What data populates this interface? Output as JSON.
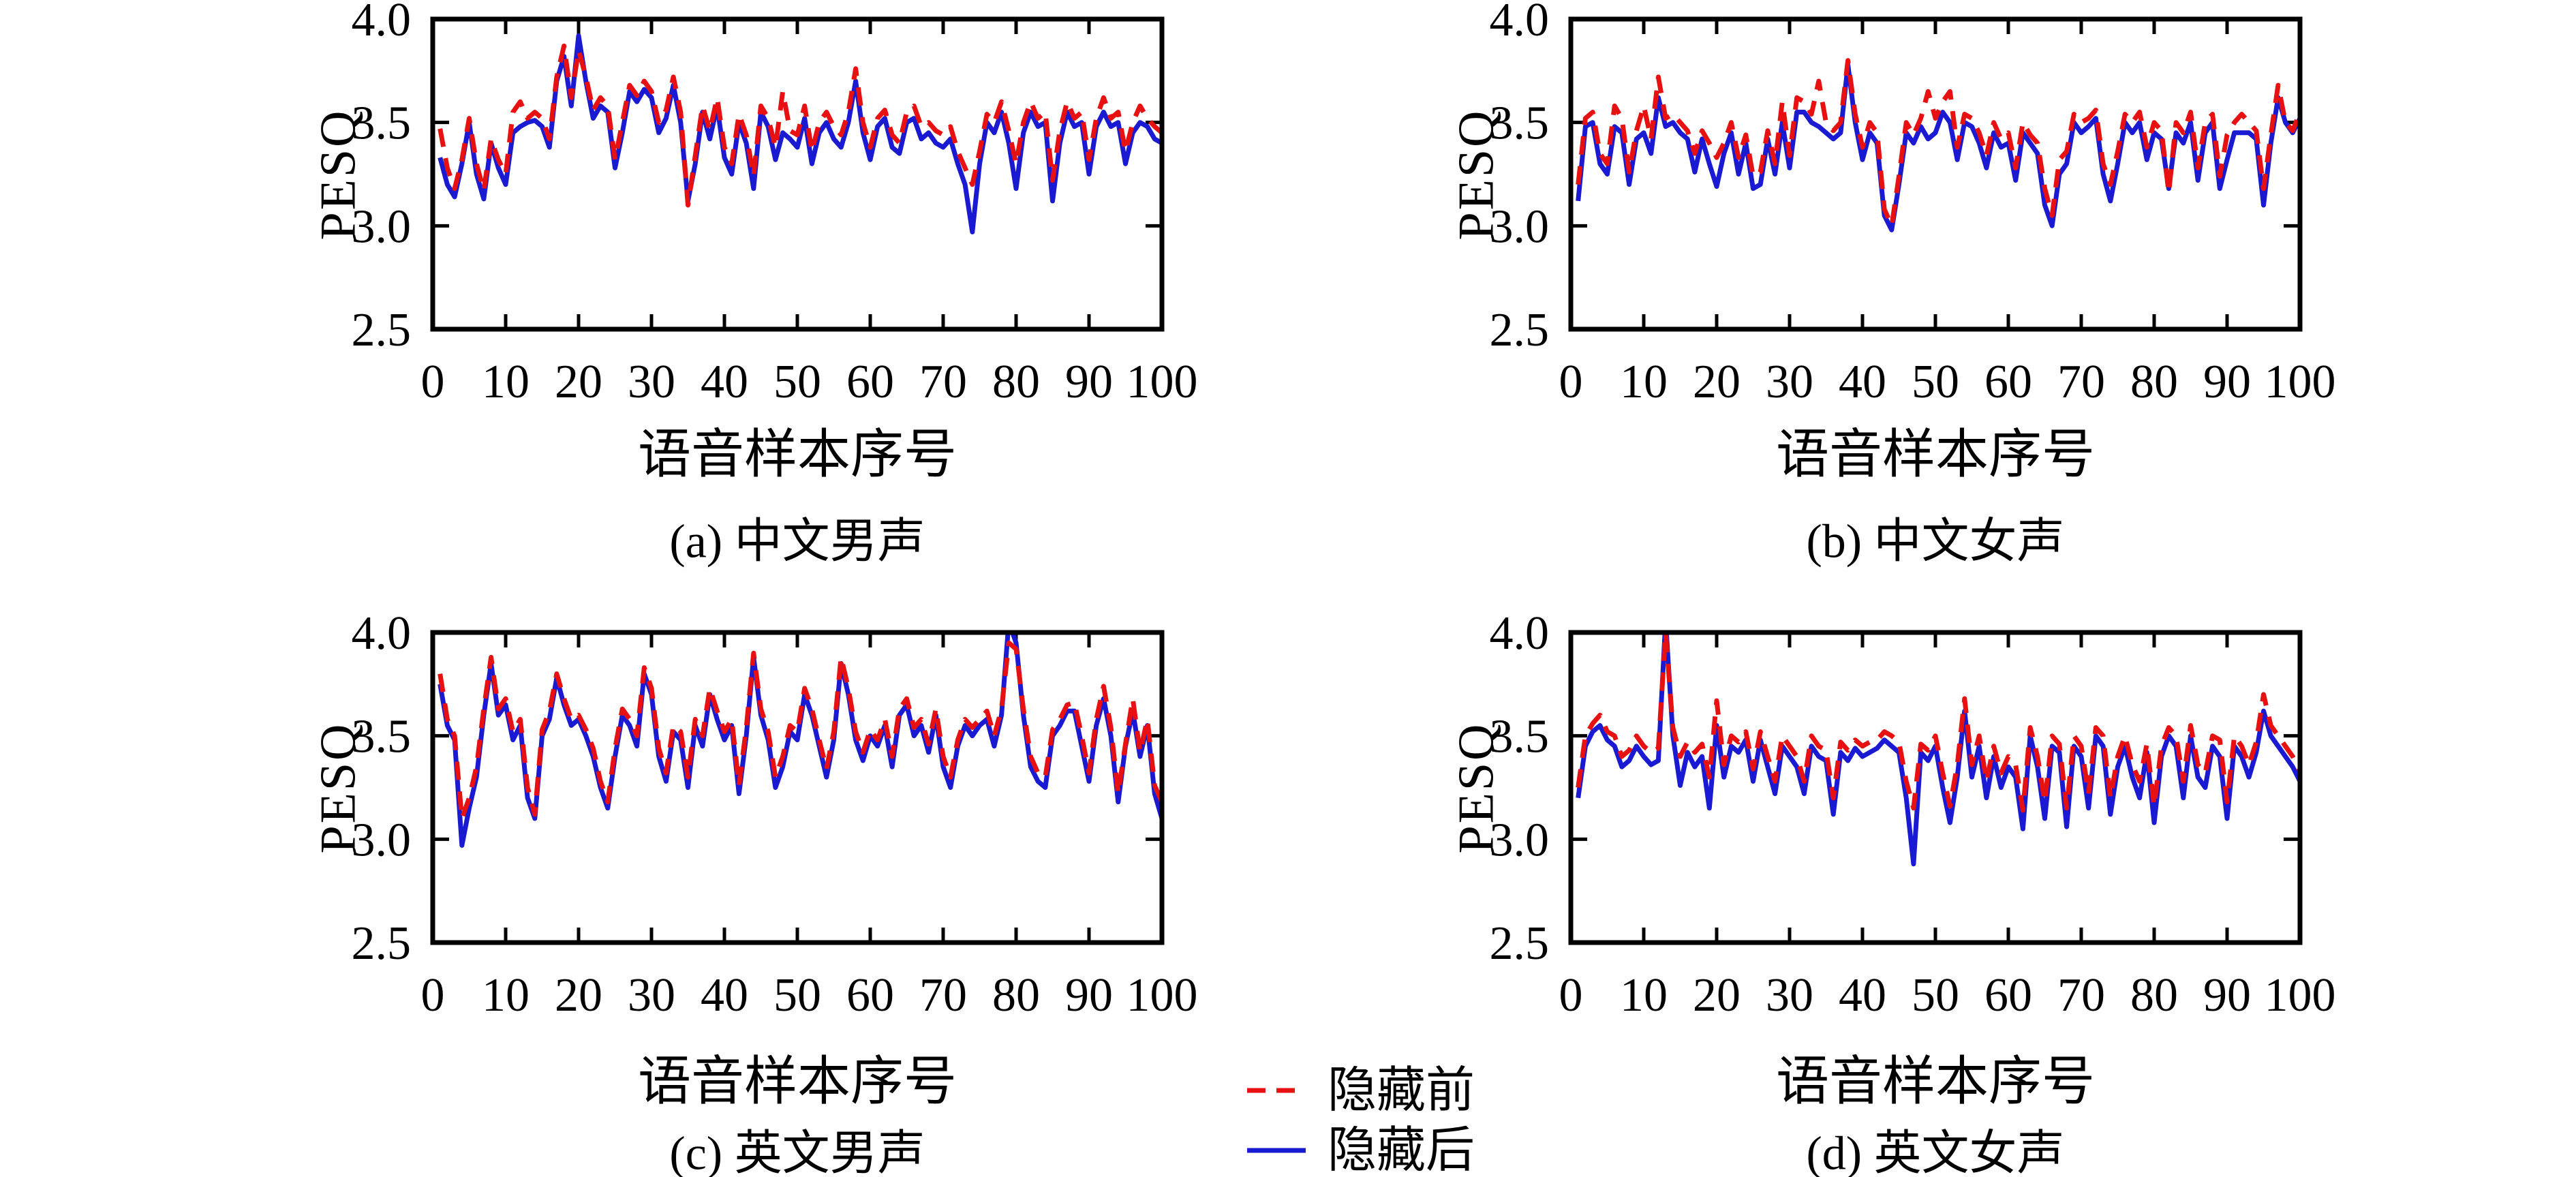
{
  "figure": {
    "background": "#ffffff",
    "axis_color": "#000000",
    "before_color": "#e81111",
    "after_color": "#1a1ad2"
  },
  "legend": {
    "position": "bottom-center",
    "items": [
      {
        "label": "隐藏前",
        "color": "#e81111",
        "style": "dashed"
      },
      {
        "label": "隐藏后",
        "color": "#1a1ad2",
        "style": "solid"
      }
    ]
  },
  "chart_data": [
    {
      "type": "line",
      "panel": "a",
      "title": "(a) 中文男声",
      "xlabel": "语音样本序号",
      "ylabel": "PESQ",
      "xlim": [
        0,
        100
      ],
      "ylim": [
        2.5,
        4.0
      ],
      "grid": false,
      "xticks": [
        0,
        10,
        20,
        30,
        40,
        50,
        60,
        70,
        80,
        90,
        100
      ],
      "yticks": [
        2.5,
        3.0,
        3.5,
        4.0
      ],
      "ytick_labels": [
        "2.5",
        "3.0",
        "3.5",
        "4.0"
      ],
      "x_start": 1,
      "x_step": 1,
      "series": [
        {
          "name": "隐藏前",
          "color": "#e81111",
          "dash": true,
          "values": [
            3.47,
            3.28,
            3.18,
            3.32,
            3.52,
            3.3,
            3.17,
            3.42,
            3.32,
            3.25,
            3.55,
            3.6,
            3.52,
            3.55,
            3.52,
            3.42,
            3.72,
            3.87,
            3.62,
            3.85,
            3.72,
            3.56,
            3.62,
            3.58,
            3.32,
            3.5,
            3.68,
            3.63,
            3.7,
            3.65,
            3.5,
            3.56,
            3.72,
            3.55,
            3.1,
            3.34,
            3.58,
            3.46,
            3.62,
            3.38,
            3.3,
            3.54,
            3.44,
            3.24,
            3.58,
            3.52,
            3.38,
            3.65,
            3.46,
            3.44,
            3.58,
            3.36,
            3.5,
            3.55,
            3.48,
            3.44,
            3.55,
            3.76,
            3.5,
            3.38,
            3.52,
            3.56,
            3.44,
            3.4,
            3.55,
            3.58,
            3.48,
            3.5,
            3.46,
            3.44,
            3.48,
            3.36,
            3.28,
            3.2,
            3.36,
            3.54,
            3.5,
            3.6,
            3.46,
            3.3,
            3.5,
            3.6,
            3.52,
            3.55,
            3.22,
            3.46,
            3.6,
            3.52,
            3.55,
            3.32,
            3.52,
            3.62,
            3.52,
            3.55,
            3.36,
            3.5,
            3.58,
            3.52,
            3.48,
            3.45
          ]
        },
        {
          "name": "隐藏后",
          "color": "#1a1ad2",
          "dash": false,
          "values": [
            3.33,
            3.2,
            3.14,
            3.3,
            3.5,
            3.25,
            3.13,
            3.4,
            3.28,
            3.2,
            3.45,
            3.48,
            3.5,
            3.51,
            3.48,
            3.38,
            3.7,
            3.82,
            3.58,
            3.92,
            3.7,
            3.52,
            3.58,
            3.55,
            3.28,
            3.45,
            3.65,
            3.6,
            3.66,
            3.62,
            3.45,
            3.52,
            3.68,
            3.5,
            3.12,
            3.3,
            3.55,
            3.42,
            3.58,
            3.33,
            3.25,
            3.5,
            3.4,
            3.18,
            3.55,
            3.48,
            3.32,
            3.45,
            3.42,
            3.38,
            3.52,
            3.3,
            3.45,
            3.5,
            3.42,
            3.38,
            3.5,
            3.7,
            3.45,
            3.32,
            3.48,
            3.52,
            3.38,
            3.35,
            3.5,
            3.52,
            3.42,
            3.45,
            3.4,
            3.38,
            3.42,
            3.3,
            3.2,
            2.97,
            3.3,
            3.5,
            3.45,
            3.55,
            3.4,
            3.18,
            3.45,
            3.55,
            3.48,
            3.5,
            3.12,
            3.4,
            3.55,
            3.48,
            3.5,
            3.25,
            3.48,
            3.55,
            3.48,
            3.5,
            3.3,
            3.45,
            3.5,
            3.48,
            3.42,
            3.4
          ]
        }
      ]
    },
    {
      "type": "line",
      "panel": "b",
      "title": "(b) 中文女声",
      "xlabel": "语音样本序号",
      "ylabel": "PESQ",
      "xlim": [
        0,
        100
      ],
      "ylim": [
        2.5,
        4.0
      ],
      "grid": false,
      "xticks": [
        0,
        10,
        20,
        30,
        40,
        50,
        60,
        70,
        80,
        90,
        100
      ],
      "yticks": [
        2.5,
        3.0,
        3.5,
        4.0
      ],
      "ytick_labels": [
        "2.5",
        "3.0",
        "3.5",
        "4.0"
      ],
      "x_start": 1,
      "x_step": 1,
      "series": [
        {
          "name": "隐藏前",
          "color": "#e81111",
          "dash": true,
          "values": [
            3.2,
            3.52,
            3.55,
            3.35,
            3.3,
            3.58,
            3.52,
            3.26,
            3.46,
            3.58,
            3.42,
            3.72,
            3.52,
            3.54,
            3.5,
            3.46,
            3.35,
            3.46,
            3.4,
            3.33,
            3.4,
            3.5,
            3.33,
            3.44,
            3.24,
            3.26,
            3.46,
            3.3,
            3.6,
            3.34,
            3.62,
            3.6,
            3.54,
            3.7,
            3.5,
            3.46,
            3.5,
            3.8,
            3.54,
            3.38,
            3.5,
            3.45,
            3.08,
            3.0,
            3.24,
            3.5,
            3.44,
            3.52,
            3.65,
            3.52,
            3.6,
            3.65,
            3.38,
            3.54,
            3.52,
            3.45,
            3.34,
            3.5,
            3.42,
            3.45,
            3.28,
            3.5,
            3.44,
            3.4,
            3.18,
            3.05,
            3.32,
            3.36,
            3.54,
            3.5,
            3.52,
            3.56,
            3.3,
            3.2,
            3.36,
            3.54,
            3.5,
            3.55,
            3.38,
            3.5,
            3.46,
            3.16,
            3.5,
            3.45,
            3.55,
            3.28,
            3.5,
            3.54,
            3.24,
            3.44,
            3.5,
            3.54,
            3.5,
            3.46,
            3.18,
            3.44,
            3.68,
            3.5,
            3.46,
            3.55
          ]
        },
        {
          "name": "隐藏后",
          "color": "#1a1ad2",
          "dash": false,
          "values": [
            3.12,
            3.48,
            3.5,
            3.3,
            3.25,
            3.48,
            3.45,
            3.2,
            3.42,
            3.45,
            3.35,
            3.62,
            3.48,
            3.5,
            3.45,
            3.42,
            3.26,
            3.42,
            3.3,
            3.19,
            3.35,
            3.45,
            3.25,
            3.4,
            3.18,
            3.2,
            3.42,
            3.25,
            3.5,
            3.28,
            3.55,
            3.55,
            3.5,
            3.48,
            3.45,
            3.42,
            3.45,
            3.78,
            3.5,
            3.32,
            3.45,
            3.4,
            3.05,
            2.98,
            3.2,
            3.45,
            3.4,
            3.48,
            3.42,
            3.45,
            3.55,
            3.5,
            3.32,
            3.5,
            3.48,
            3.4,
            3.28,
            3.45,
            3.38,
            3.4,
            3.22,
            3.45,
            3.4,
            3.35,
            3.1,
            3.0,
            3.25,
            3.3,
            3.5,
            3.45,
            3.48,
            3.52,
            3.25,
            3.12,
            3.3,
            3.5,
            3.45,
            3.5,
            3.32,
            3.45,
            3.42,
            3.18,
            3.45,
            3.4,
            3.5,
            3.22,
            3.45,
            3.5,
            3.18,
            3.32,
            3.45,
            3.45,
            3.45,
            3.42,
            3.1,
            3.4,
            3.62,
            3.5,
            3.45,
            3.52
          ]
        }
      ]
    },
    {
      "type": "line",
      "panel": "c",
      "title": "(c) 英文男声",
      "xlabel": "语音样本序号",
      "ylabel": "PESQ",
      "xlim": [
        0,
        100
      ],
      "ylim": [
        2.5,
        4.0
      ],
      "grid": false,
      "xticks": [
        0,
        10,
        20,
        30,
        40,
        50,
        60,
        70,
        80,
        90,
        100
      ],
      "yticks": [
        2.5,
        3.0,
        3.5,
        4.0
      ],
      "ytick_labels": [
        "2.5",
        "3.0",
        "3.5",
        "4.0"
      ],
      "x_start": 1,
      "x_step": 1,
      "series": [
        {
          "name": "隐藏前",
          "color": "#e81111",
          "dash": true,
          "values": [
            3.8,
            3.58,
            3.5,
            3.1,
            3.2,
            3.35,
            3.63,
            3.88,
            3.63,
            3.68,
            3.52,
            3.58,
            3.25,
            3.12,
            3.53,
            3.62,
            3.8,
            3.68,
            3.58,
            3.6,
            3.53,
            3.44,
            3.28,
            3.18,
            3.44,
            3.63,
            3.58,
            3.5,
            3.83,
            3.73,
            3.44,
            3.32,
            3.55,
            3.52,
            3.3,
            3.58,
            3.5,
            3.73,
            3.62,
            3.52,
            3.58,
            3.26,
            3.54,
            3.9,
            3.63,
            3.52,
            3.3,
            3.4,
            3.55,
            3.52,
            3.73,
            3.63,
            3.48,
            3.34,
            3.52,
            3.88,
            3.73,
            3.52,
            3.42,
            3.53,
            3.48,
            3.58,
            3.4,
            3.63,
            3.68,
            3.54,
            3.58,
            3.46,
            3.63,
            3.4,
            3.3,
            3.48,
            3.58,
            3.54,
            3.58,
            3.62,
            3.5,
            3.63,
            3.95,
            3.92,
            3.63,
            3.4,
            3.32,
            3.3,
            3.53,
            3.58,
            3.65,
            3.66,
            3.5,
            3.32,
            3.58,
            3.74,
            3.54,
            3.22,
            3.46,
            3.68,
            3.42,
            3.58,
            3.26,
            3.18
          ]
        },
        {
          "name": "隐藏后",
          "color": "#1a1ad2",
          "dash": false,
          "values": [
            3.75,
            3.55,
            3.48,
            2.97,
            3.15,
            3.3,
            3.6,
            3.85,
            3.6,
            3.65,
            3.48,
            3.55,
            3.2,
            3.1,
            3.5,
            3.58,
            3.78,
            3.65,
            3.55,
            3.58,
            3.5,
            3.4,
            3.25,
            3.15,
            3.4,
            3.6,
            3.55,
            3.45,
            3.8,
            3.7,
            3.4,
            3.28,
            3.52,
            3.48,
            3.25,
            3.55,
            3.45,
            3.7,
            3.58,
            3.48,
            3.55,
            3.22,
            3.5,
            3.88,
            3.6,
            3.48,
            3.25,
            3.35,
            3.52,
            3.48,
            3.7,
            3.6,
            3.45,
            3.3,
            3.48,
            3.85,
            3.7,
            3.48,
            3.38,
            3.5,
            3.45,
            3.55,
            3.35,
            3.6,
            3.65,
            3.5,
            3.55,
            3.42,
            3.6,
            3.35,
            3.25,
            3.45,
            3.55,
            3.5,
            3.55,
            3.58,
            3.45,
            3.6,
            4.05,
            3.95,
            3.6,
            3.35,
            3.28,
            3.25,
            3.5,
            3.55,
            3.62,
            3.62,
            3.45,
            3.28,
            3.55,
            3.68,
            3.5,
            3.18,
            3.45,
            3.62,
            3.4,
            3.55,
            3.22,
            3.1
          ]
        }
      ]
    },
    {
      "type": "line",
      "panel": "d",
      "title": "(d) 英文女声",
      "xlabel": "语音样本序号",
      "ylabel": "PESQ",
      "xlim": [
        0,
        100
      ],
      "ylim": [
        2.5,
        4.0
      ],
      "grid": false,
      "xticks": [
        0,
        10,
        20,
        30,
        40,
        50,
        60,
        70,
        80,
        90,
        100
      ],
      "yticks": [
        2.5,
        3.0,
        3.5,
        4.0
      ],
      "ytick_labels": [
        "2.5",
        "3.0",
        "3.5",
        "4.0"
      ],
      "x_start": 1,
      "x_step": 1,
      "series": [
        {
          "name": "隐藏前",
          "color": "#e81111",
          "dash": true,
          "values": [
            3.25,
            3.5,
            3.56,
            3.6,
            3.52,
            3.5,
            3.4,
            3.43,
            3.5,
            3.45,
            3.42,
            3.44,
            4.0,
            3.54,
            3.4,
            3.47,
            3.42,
            3.46,
            3.3,
            3.67,
            3.36,
            3.5,
            3.47,
            3.52,
            3.34,
            3.52,
            3.4,
            3.28,
            3.5,
            3.45,
            3.4,
            3.28,
            3.5,
            3.45,
            3.43,
            3.2,
            3.47,
            3.43,
            3.48,
            3.45,
            3.47,
            3.48,
            3.52,
            3.5,
            3.47,
            3.28,
            3.15,
            3.46,
            3.43,
            3.5,
            3.32,
            3.16,
            3.36,
            3.68,
            3.36,
            3.5,
            3.28,
            3.45,
            3.32,
            3.4,
            3.36,
            3.14,
            3.54,
            3.4,
            3.18,
            3.5,
            3.46,
            3.15,
            3.5,
            3.45,
            3.22,
            3.54,
            3.5,
            3.2,
            3.4,
            3.5,
            3.36,
            3.28,
            3.46,
            3.16,
            3.45,
            3.54,
            3.5,
            3.28,
            3.55,
            3.36,
            3.32,
            3.5,
            3.48,
            3.18,
            3.5,
            3.45,
            3.36,
            3.47,
            3.7,
            3.55,
            3.5,
            3.45,
            3.4,
            3.33
          ]
        },
        {
          "name": "隐藏后",
          "color": "#1a1ad2",
          "dash": false,
          "values": [
            3.2,
            3.45,
            3.52,
            3.55,
            3.48,
            3.45,
            3.35,
            3.38,
            3.45,
            3.4,
            3.36,
            3.38,
            4.06,
            3.5,
            3.26,
            3.42,
            3.35,
            3.4,
            3.15,
            3.55,
            3.3,
            3.45,
            3.42,
            3.48,
            3.28,
            3.48,
            3.35,
            3.22,
            3.45,
            3.4,
            3.35,
            3.22,
            3.45,
            3.4,
            3.38,
            3.12,
            3.42,
            3.38,
            3.44,
            3.4,
            3.42,
            3.44,
            3.48,
            3.45,
            3.42,
            3.2,
            2.88,
            3.42,
            3.38,
            3.45,
            3.25,
            3.08,
            3.3,
            3.62,
            3.3,
            3.45,
            3.2,
            3.4,
            3.25,
            3.35,
            3.3,
            3.05,
            3.5,
            3.35,
            3.1,
            3.45,
            3.42,
            3.06,
            3.45,
            3.4,
            3.15,
            3.5,
            3.45,
            3.12,
            3.35,
            3.45,
            3.3,
            3.2,
            3.42,
            3.08,
            3.4,
            3.5,
            3.45,
            3.2,
            3.5,
            3.3,
            3.25,
            3.45,
            3.4,
            3.1,
            3.45,
            3.4,
            3.3,
            3.42,
            3.62,
            3.5,
            3.45,
            3.4,
            3.35,
            3.28
          ]
        }
      ]
    }
  ]
}
